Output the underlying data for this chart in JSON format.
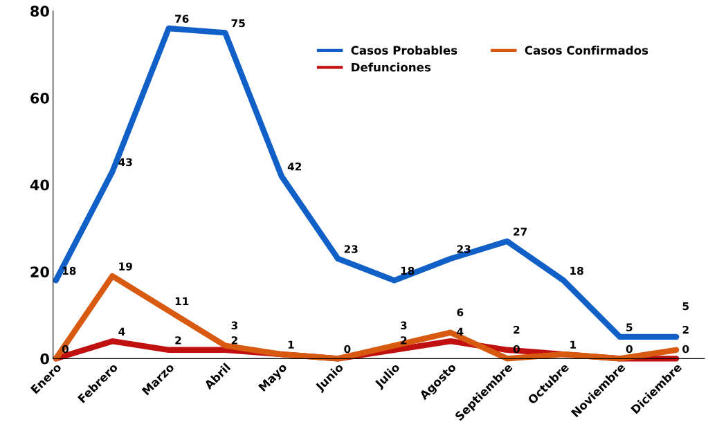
{
  "chart_data": {
    "type": "line",
    "categories": [
      "Enero",
      "Febrero",
      "Marzo",
      "Abril",
      "Mayo",
      "Junio",
      "Julio",
      "Agosto",
      "Septiembre",
      "Octubre",
      "Noviembre",
      "Diciembre"
    ],
    "series": [
      {
        "name": "Casos Probables",
        "color": "#1060c8",
        "values": [
          18,
          43,
          76,
          75,
          42,
          23,
          18,
          23,
          27,
          18,
          5,
          5
        ],
        "value_labels": [
          "18",
          "43",
          "76",
          "75",
          "42",
          "23",
          "18",
          "23",
          "27",
          "18",
          "5",
          "5"
        ]
      },
      {
        "name": "Defunciones",
        "color": "#c01010",
        "values": [
          0,
          4,
          2,
          2,
          1,
          0,
          2,
          4,
          2,
          1,
          0,
          0
        ],
        "value_labels": [
          "0",
          "4",
          "2",
          "2",
          "1",
          "0",
          "2",
          "4",
          "2",
          "1",
          "0",
          "0"
        ]
      },
      {
        "name": "Casos Confirmados",
        "color": "#d85a10",
        "values": [
          0,
          19,
          11,
          3,
          1,
          0,
          3,
          6,
          0,
          1,
          0,
          2
        ],
        "value_labels": [
          null,
          "19",
          "11",
          "3",
          null,
          null,
          "3",
          "6",
          "0",
          null,
          null,
          "2"
        ]
      }
    ],
    "ylim": [
      0,
      80
    ],
    "yticks": [
      0,
      20,
      40,
      60,
      80
    ],
    "grid": false,
    "legend": "top right",
    "marker": "none",
    "line_style": "solid"
  }
}
